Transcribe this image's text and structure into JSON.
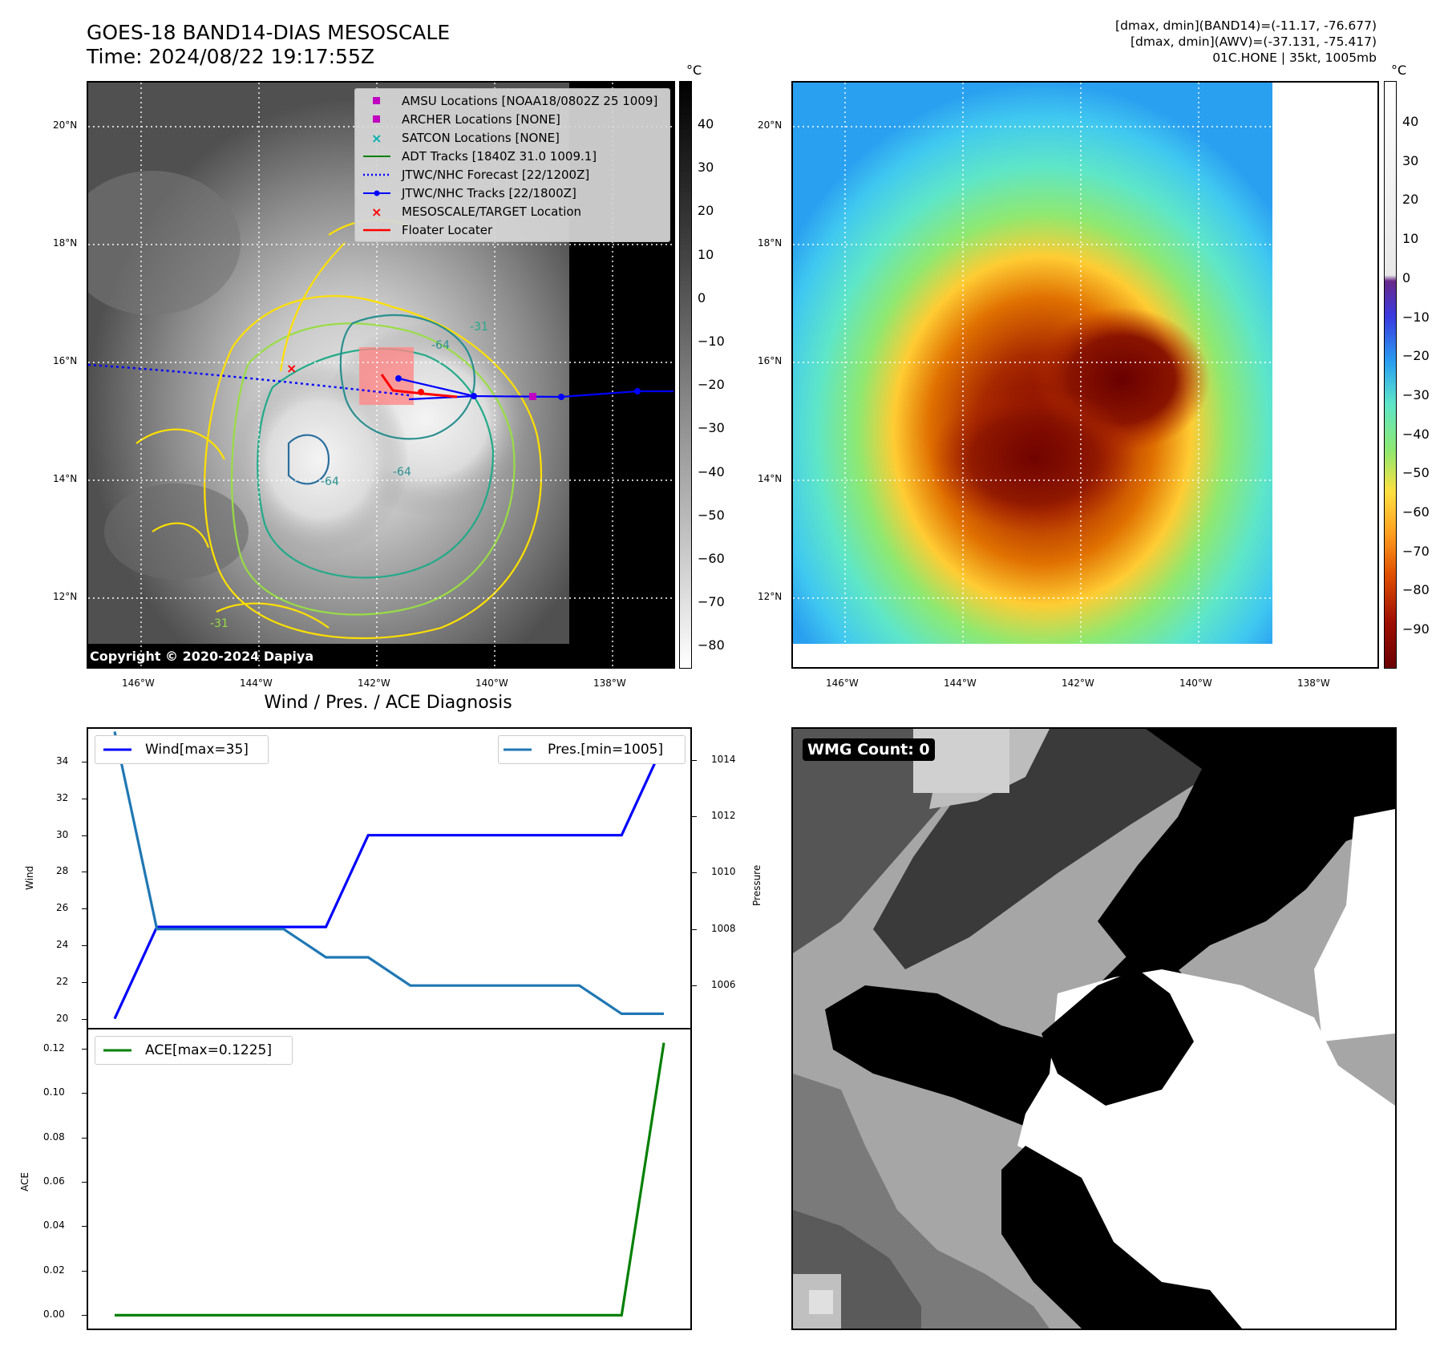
{
  "header": {
    "title_line1": "GOES-18 BAND14-DIAS MESOSCALE",
    "title_line2": "Time: 2024/08/22 19:17:55Z",
    "info_line1": "[dmax, dmin](BAND14)=(-11.17, -76.677)",
    "info_line2": "[dmax, dmin](AWV)=(-37.131, -75.417)",
    "info_line3": "01C.HONE | 35kt, 1005mb"
  },
  "map": {
    "lat_labels": [
      "20°N",
      "18°N",
      "16°N",
      "14°N",
      "12°N"
    ],
    "lon_labels": [
      "146°W",
      "144°W",
      "142°W",
      "140°W",
      "138°W"
    ],
    "copyright": "Copyright © 2020-2024 Dapiya",
    "contour_labels": [
      "-64",
      "-31",
      "-64",
      "-64",
      "-31"
    ],
    "legend": [
      {
        "label": "AMSU Locations [NOAA18/0802Z 25 1009]",
        "color": "#c000c0",
        "marker": "square"
      },
      {
        "label": "ARCHER Locations [NONE]",
        "color": "#c000c0",
        "marker": "square"
      },
      {
        "label": "SATCON Locations [NONE]",
        "color": "#00b0b0",
        "marker": "x"
      },
      {
        "label": "ADT Tracks [1840Z 31.0 1009.1]",
        "color": "#008000",
        "marker": "line"
      },
      {
        "label": "JTWC/NHC Forecast [22/1200Z]",
        "color": "#0000ff",
        "marker": "dotted"
      },
      {
        "label": "JTWC/NHC Tracks [22/1800Z]",
        "color": "#0000ff",
        "marker": "line-dot"
      },
      {
        "label": "MESOSCALE/TARGET Location",
        "color": "#ff0000",
        "marker": "x"
      },
      {
        "label": "Floater Locater",
        "color": "#ff0000",
        "marker": "line"
      }
    ]
  },
  "colorbar_band14": {
    "unit": "°C",
    "ticks": [
      "40",
      "30",
      "20",
      "10",
      "0",
      "−10",
      "−20",
      "−30",
      "−40",
      "−50",
      "−60",
      "−70",
      "−80"
    ]
  },
  "colorbar_awv": {
    "unit": "°C",
    "ticks": [
      "40",
      "30",
      "20",
      "10",
      "0",
      "−10",
      "−20",
      "−30",
      "−40",
      "−50",
      "−60",
      "−70",
      "−80",
      "−90"
    ]
  },
  "chart_data": [
    {
      "type": "line",
      "title": "Wind / Pres. / ACE Diagnosis",
      "ylabel": "Wind",
      "y2label": "Pressure",
      "ylim": [
        19.5,
        35.8
      ],
      "y2lim": [
        1004.5,
        1015.1
      ],
      "x": [
        0,
        1,
        2,
        3,
        4,
        5,
        6,
        7,
        8,
        9,
        10,
        11,
        12,
        13
      ],
      "series": [
        {
          "name": "Wind[max=35]",
          "color": "#0000ff",
          "axis": "left",
          "values": [
            20,
            25,
            25,
            25,
            25,
            25,
            30,
            30,
            30,
            30,
            30,
            30,
            30,
            35
          ]
        },
        {
          "name": "Pres.[min=1005]",
          "color": "#1f77b4",
          "axis": "right",
          "values": [
            1015,
            1008,
            1008,
            1008,
            1008,
            1007,
            1007,
            1006,
            1006,
            1006,
            1006,
            1006,
            1005,
            1005
          ]
        }
      ],
      "yticks": [
        "34",
        "32",
        "30",
        "28",
        "26",
        "24",
        "22",
        "20"
      ],
      "y2ticks": [
        "1014",
        "1012",
        "1010",
        "1008",
        "1006"
      ]
    },
    {
      "type": "line",
      "ylabel": "ACE",
      "ylim": [
        -0.006,
        0.1285
      ],
      "x": [
        0,
        1,
        2,
        3,
        4,
        5,
        6,
        7,
        8,
        9,
        10,
        11,
        12,
        13
      ],
      "series": [
        {
          "name": "ACE[max=0.1225]",
          "color": "#008000",
          "values": [
            0,
            0,
            0,
            0,
            0,
            0,
            0,
            0,
            0,
            0,
            0,
            0,
            0,
            0.1225
          ]
        }
      ],
      "yticks": [
        "0.12",
        "0.10",
        "0.08",
        "0.06",
        "0.04",
        "0.02",
        "0.00"
      ]
    }
  ],
  "wmg": {
    "label": "WMG Count: 0"
  }
}
